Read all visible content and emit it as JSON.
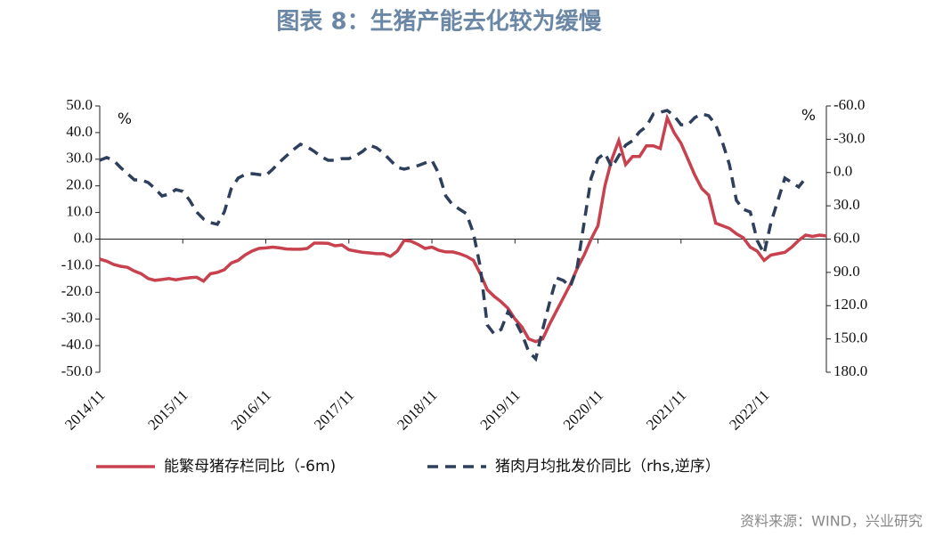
{
  "chart_data": {
    "type": "line",
    "title": "图表 8：生猪产能去化较为缓慢",
    "source": "资料来源：WIND，兴业研究",
    "y_unit": "%",
    "y2_unit": "%",
    "categories": [
      "2014/11",
      null,
      null,
      null,
      null,
      null,
      null,
      null,
      null,
      null,
      null,
      null,
      "2015/11",
      null,
      null,
      null,
      null,
      null,
      null,
      null,
      null,
      null,
      null,
      null,
      "2016/11",
      null,
      null,
      null,
      null,
      null,
      null,
      null,
      null,
      null,
      null,
      null,
      "2017/11",
      null,
      null,
      null,
      null,
      null,
      null,
      null,
      null,
      null,
      null,
      null,
      "2018/11",
      null,
      null,
      null,
      null,
      null,
      null,
      null,
      null,
      null,
      null,
      null,
      "2019/11",
      null,
      null,
      null,
      null,
      null,
      null,
      null,
      null,
      null,
      null,
      null,
      "2020/11",
      null,
      null,
      null,
      null,
      null,
      null,
      null,
      null,
      null,
      null,
      null,
      "2021/11",
      null,
      null,
      null,
      null,
      null,
      null,
      null,
      null,
      null,
      null,
      null,
      "2022/11",
      null,
      null,
      null,
      null,
      null,
      null,
      null,
      null,
      null
    ],
    "series": [
      {
        "name": "能繁母猪存栏同比（-6m)",
        "color": "#c8414e",
        "dash": false,
        "axis": "y",
        "values": [
          -7.5,
          -8.3,
          -9.5,
          -10.2,
          -10.6,
          -12,
          -13,
          -14.8,
          -15.5,
          -15.2,
          -14.8,
          -15.3,
          -14.8,
          -14.5,
          -14.3,
          -15.8,
          -13,
          -12.5,
          -11.5,
          -9,
          -8,
          -6,
          -4.5,
          -3.5,
          -3.3,
          -3,
          -3.3,
          -3.7,
          -3.8,
          -3.8,
          -3.5,
          -1.5,
          -1.5,
          -1.6,
          -2.5,
          -2.2,
          -4,
          -4.5,
          -5,
          -5.2,
          -5.5,
          -5.5,
          -6.5,
          -4.5,
          -0.5,
          -0.8,
          -2,
          -3.5,
          -3,
          -4.2,
          -4.8,
          -4.8,
          -5.5,
          -6.5,
          -8,
          -13,
          -19,
          -21.5,
          -23.5,
          -26,
          -30,
          -33,
          -37.5,
          -38.5,
          -37.5,
          -32,
          -27,
          -22,
          -17,
          -11,
          -6,
          0,
          5,
          20,
          30,
          37,
          28,
          31,
          31,
          35,
          35,
          34,
          45.5,
          40,
          36,
          30,
          24,
          19,
          16.5,
          6,
          5,
          4,
          2,
          0.5,
          -3,
          -4.5,
          -8,
          -6,
          -5.5,
          -5,
          -3,
          -0.5,
          1.5,
          1,
          1.5,
          1.2
        ]
      },
      {
        "name": "猪肉月均批发价同比（rhs,逆序）",
        "color": "#2e3f5c",
        "dash": true,
        "axis": "y2",
        "values": [
          -11.0,
          -13.5,
          -11.0,
          -4.6,
          1.0,
          6.6,
          6.6,
          9.0,
          14.6,
          21.1,
          19.5,
          15.4,
          17.0,
          25.1,
          35.5,
          41.9,
          45.1,
          46.7,
          35.5,
          14.6,
          5.0,
          1.8,
          1.0,
          1.8,
          2.6,
          -3.0,
          -9.4,
          -15.1,
          -20.7,
          -25.5,
          -23.1,
          -19.1,
          -14.3,
          -11.0,
          -11.0,
          -12.6,
          -12.6,
          -15.1,
          -19.1,
          -24.7,
          -22.3,
          -17.5,
          -11.0,
          -4.6,
          -3.0,
          -4.6,
          -6.2,
          -8.6,
          -11.0,
          1.0,
          21.1,
          29.1,
          33.1,
          37.1,
          54.8,
          85.3,
          137.4,
          145.5,
          141.5,
          125.4,
          133.4,
          145.5,
          161.5,
          167.9,
          141.5,
          117.4,
          94.9,
          97.3,
          102.9,
          85.3,
          45.1,
          5.0,
          -12.6,
          -17.5,
          -4.6,
          -15.1,
          -24.7,
          -28.7,
          -36.7,
          -41.5,
          -52.8,
          -54.4,
          -56.0,
          -51.2,
          -43.1,
          -43.1,
          -49.6,
          -52.8,
          -51.2,
          -43.1,
          -27.1,
          -7.0,
          25.1,
          33.1,
          35.5,
          61.2,
          73.2,
          45.1,
          25.1,
          5.0,
          9.0,
          13.0,
          5.0,
          null,
          null,
          null
        ]
      }
    ],
    "ylim": [
      -50,
      50
    ],
    "yticks": [
      {
        "value": -50,
        "label": "-50.0"
      },
      {
        "value": -40,
        "label": "-40.0"
      },
      {
        "value": -30,
        "label": "-30.0"
      },
      {
        "value": -20,
        "label": "-20.0"
      },
      {
        "value": -10,
        "label": "-10.0"
      },
      {
        "value": 0,
        "label": "0.0"
      },
      {
        "value": 10,
        "label": "10.0"
      },
      {
        "value": 20,
        "label": "20.0"
      },
      {
        "value": 30,
        "label": "30.0"
      },
      {
        "value": 40,
        "label": "40.0"
      },
      {
        "value": 50,
        "label": "50.0"
      }
    ],
    "y2lim": [
      -60,
      180
    ],
    "y2_reversed": true,
    "y2ticks": [
      {
        "value": -60,
        "label": "-60.0"
      },
      {
        "value": -30,
        "label": "-30.0"
      },
      {
        "value": 0,
        "label": "0.0"
      },
      {
        "value": 30,
        "label": "30.0"
      },
      {
        "value": 60,
        "label": "60.0"
      },
      {
        "value": 90,
        "label": "90.0"
      },
      {
        "value": 120,
        "label": "120.0"
      },
      {
        "value": 150,
        "label": "150.0"
      },
      {
        "value": 180,
        "label": "180.0"
      }
    ],
    "zero_line": true,
    "legend": "bottom"
  }
}
